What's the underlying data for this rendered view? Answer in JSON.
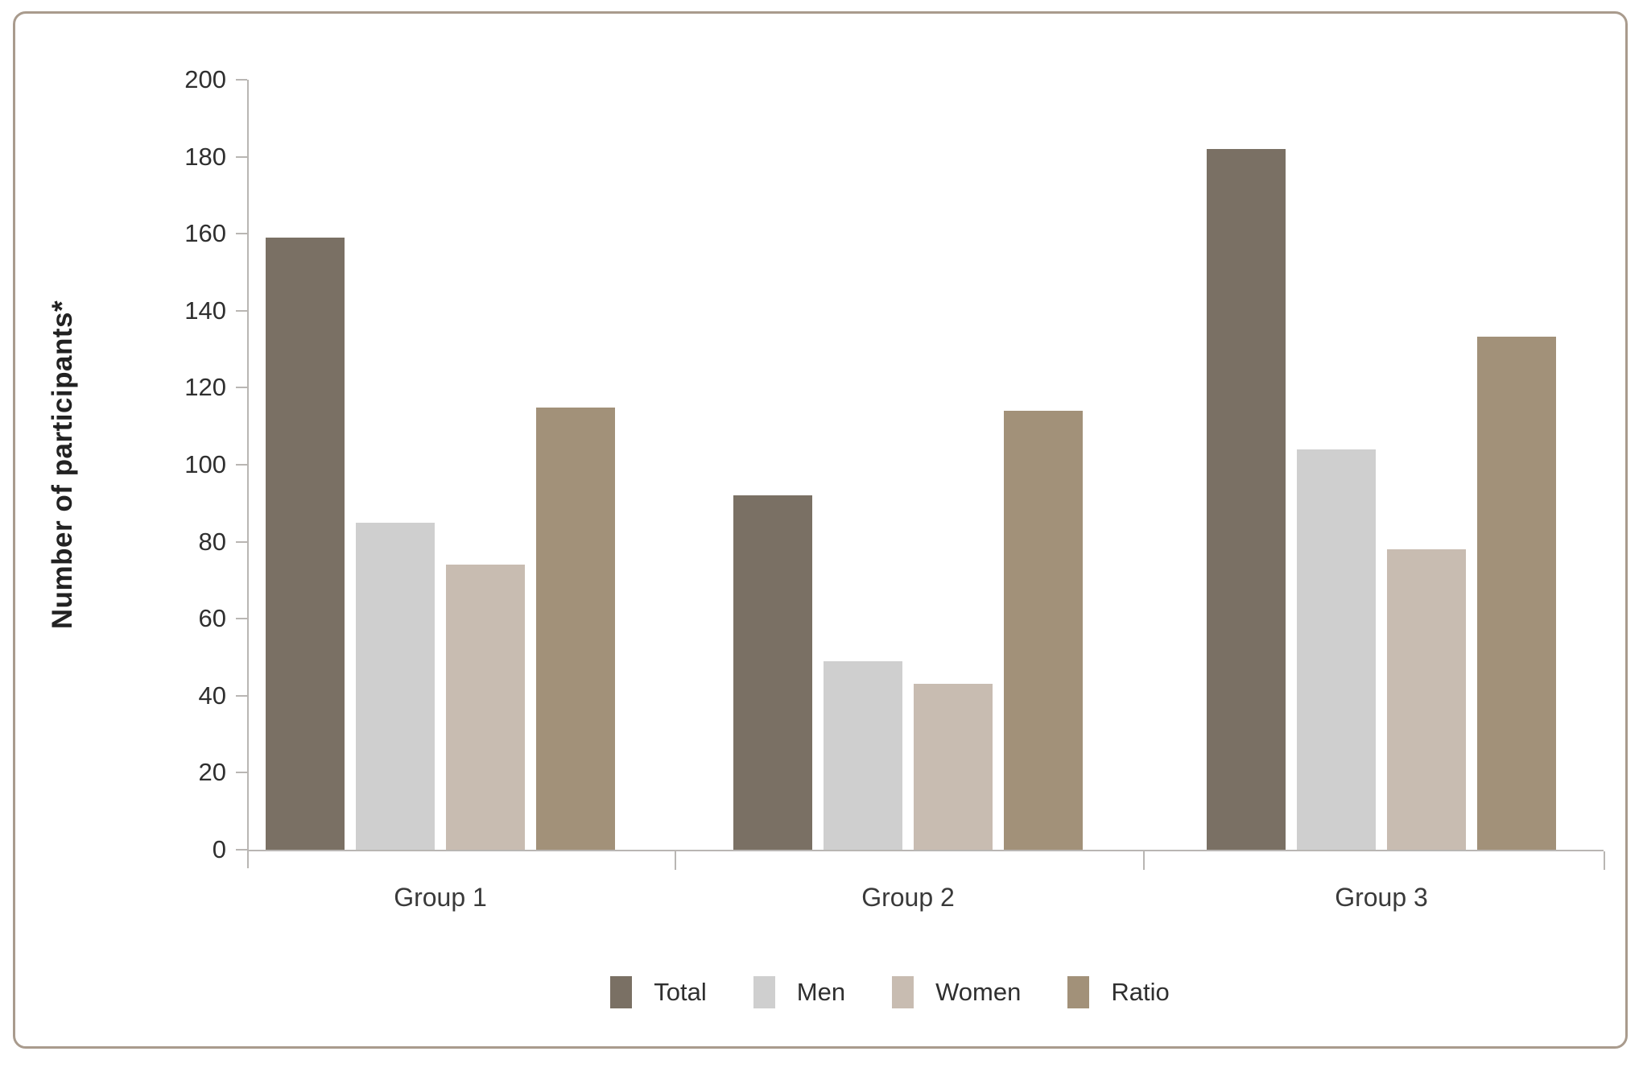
{
  "chart_data": {
    "type": "bar",
    "title": "",
    "categories": [
      "Group 1",
      "Group 2",
      "Group 3"
    ],
    "series": [
      {
        "name": "Total",
        "color": "#7a7064",
        "values": [
          159,
          92,
          182
        ]
      },
      {
        "name": "Men",
        "color": "#cfcfcf",
        "values": [
          85,
          49,
          104
        ]
      },
      {
        "name": "Women",
        "color": "#c8bcb1",
        "values": [
          74,
          43,
          78
        ]
      },
      {
        "name": "Ratio",
        "color": "#a29179",
        "values": [
          114.9,
          114.0,
          133.3
        ]
      }
    ],
    "xlabel": "",
    "ylabel": "Number of participants*",
    "ylim": [
      0,
      200
    ],
    "yticks": [
      0,
      20,
      40,
      60,
      80,
      100,
      120,
      140,
      160,
      180,
      200
    ],
    "grid": false,
    "legend_position": "bottom",
    "legend_labels": [
      "Total",
      "Men",
      "Women",
      "Ratio"
    ]
  },
  "frame": {
    "border_color": "#a99b8d",
    "axis_color": "#b9b6b3",
    "background_color": "#ffffff",
    "text_color": "#2f2f2f"
  }
}
